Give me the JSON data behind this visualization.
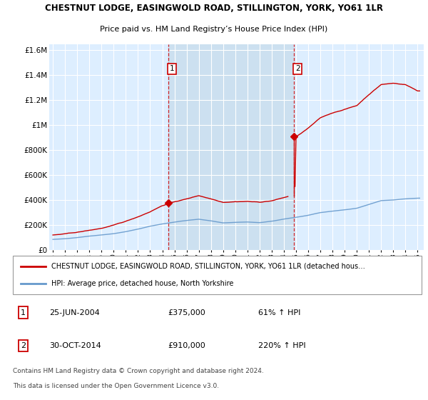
{
  "title": "CHESTNUT LODGE, EASINGWOLD ROAD, STILLINGTON, YORK, YO61 1LR",
  "subtitle": "Price paid vs. HM Land Registry’s House Price Index (HPI)",
  "ylim": [
    0,
    1650000
  ],
  "yticks": [
    0,
    200000,
    400000,
    600000,
    800000,
    1000000,
    1200000,
    1400000,
    1600000
  ],
  "ytick_labels": [
    "£0",
    "£200K",
    "£400K",
    "£600K",
    "£800K",
    "£1M",
    "£1.2M",
    "£1.4M",
    "£1.6M"
  ],
  "plot_bg_color": "#ddeeff",
  "grid_color": "#cccccc",
  "shade_color": "#cce0f0",
  "purchase1": {
    "year_float": 2004.48,
    "price": 375000,
    "label": "1",
    "date": "25-JUN-2004",
    "pct": "61% ↑ HPI"
  },
  "purchase2": {
    "year_float": 2014.83,
    "price": 910000,
    "label": "2",
    "date": "30-OCT-2014",
    "pct": "220% ↑ HPI"
  },
  "legend_label_red": "CHESTNUT LODGE, EASINGWOLD ROAD, STILLINGTON, YORK, YO61 1LR (detached hous…",
  "legend_label_blue": "HPI: Average price, detached house, North Yorkshire",
  "footnote1": "Contains HM Land Registry data © Crown copyright and database right 2024.",
  "footnote2": "This data is licensed under the Open Government Licence v3.0.",
  "red_color": "#cc0000",
  "blue_color": "#6699cc",
  "xlim_min": 1994.7,
  "xlim_max": 2025.5
}
